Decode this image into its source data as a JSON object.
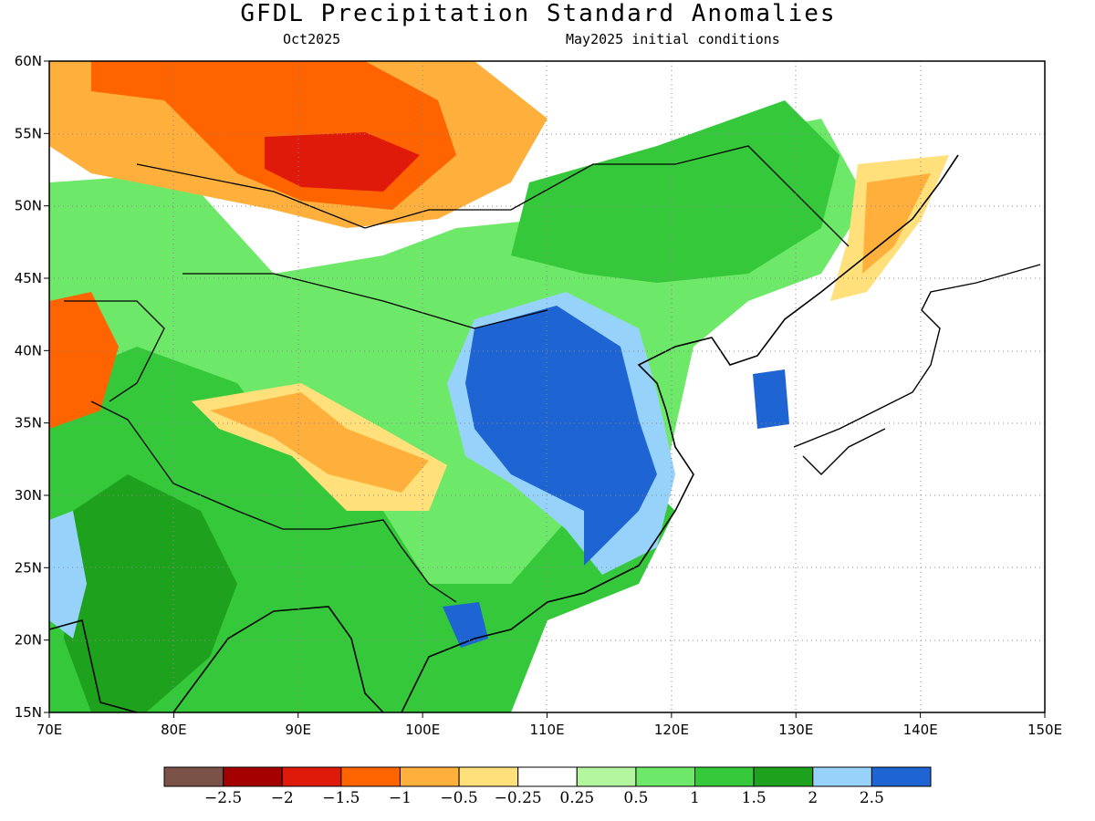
{
  "title": "GFDL Precipitation Standard Anomalies",
  "subtitle_left": "Oct2025",
  "subtitle_right": "May2025 initial conditions",
  "map": {
    "lon_range": [
      70,
      150
    ],
    "lat_range": [
      15,
      60
    ],
    "lon_ticks": [
      "70E",
      "80E",
      "90E",
      "100E",
      "110E",
      "120E",
      "130E",
      "140E",
      "150E"
    ],
    "lat_ticks": [
      "15N",
      "20N",
      "25N",
      "30N",
      "35N",
      "40N",
      "45N",
      "50N",
      "55N",
      "60N"
    ],
    "gridlines": "dotted"
  },
  "colorbar": {
    "colors": [
      "#7b5247",
      "#a40000",
      "#e01a0a",
      "#ff6400",
      "#ffb03c",
      "#ffe07a",
      "#ffffff",
      "#b4f5a0",
      "#6ee869",
      "#35c83a",
      "#1ea21e",
      "#96d2fa",
      "#1e64d2"
    ],
    "labels": [
      "−2.5",
      "−2",
      "−1.5",
      "−1",
      "−0.5",
      "−0.25",
      "0.25",
      "0.5",
      "1",
      "1.5",
      "2",
      "2.5"
    ]
  }
}
